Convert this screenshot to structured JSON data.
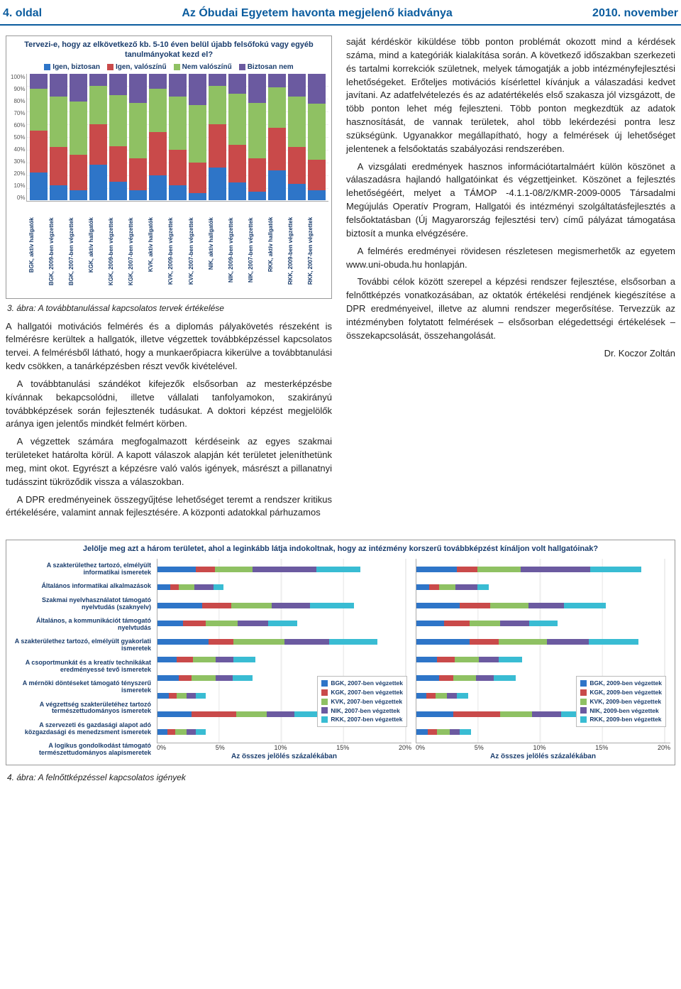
{
  "header": {
    "page_left": "4. oldal",
    "title_center": "Az Óbudai Egyetem havonta megjelenő kiadványa",
    "date_right": "2010. november"
  },
  "palette": {
    "blue": "#2e75c8",
    "red": "#c94a4a",
    "green": "#8fc163",
    "purple": "#6b5aa0",
    "teal": "#39bcd3",
    "orange": "#e09a3a"
  },
  "chart3": {
    "frame_border": "#999999",
    "title": "Tervezi-e, hogy az elkövetkező kb. 5-10 éven belül újabb felsőfokú vagy egyéb tanulmányokat kezd el?",
    "legend": [
      {
        "label": "Igen, biztosan",
        "color": "#2e75c8"
      },
      {
        "label": "Igen, valószínű",
        "color": "#c94a4a"
      },
      {
        "label": "Nem valószínű",
        "color": "#8fc163"
      },
      {
        "label": "Biztosan nem",
        "color": "#6b5aa0"
      }
    ],
    "y_ticks": [
      "100%",
      "90%",
      "80%",
      "70%",
      "60%",
      "50%",
      "40%",
      "30%",
      "20%",
      "10%",
      "0%"
    ],
    "categories": [
      "BGK, aktív hallgatók",
      "BGK, 2009-ben végzettek",
      "BGK, 2007-ben végzettek",
      "KGK, aktív hallgatók",
      "KGK, 2009-ben végzettek",
      "KGK, 2007-ben végzettek",
      "KVK, aktív hallgatók",
      "KVK, 2009-ben végzettek",
      "KVK, 2007-ben végzettek",
      "NIK, aktív hallgatók",
      "NIK, 2009-ben végzettek",
      "NIK, 2007-ben végzettek",
      "RKK, aktív hallgatók",
      "RKK, 2009-ben végzettek",
      "RKK, 2007-ben végzettek"
    ],
    "stacks": [
      [
        22,
        33,
        33,
        12
      ],
      [
        12,
        30,
        40,
        18
      ],
      [
        8,
        28,
        42,
        22
      ],
      [
        28,
        32,
        30,
        10
      ],
      [
        15,
        28,
        40,
        17
      ],
      [
        8,
        25,
        44,
        23
      ],
      [
        20,
        34,
        34,
        12
      ],
      [
        12,
        28,
        42,
        18
      ],
      [
        6,
        24,
        45,
        25
      ],
      [
        26,
        34,
        30,
        10
      ],
      [
        14,
        30,
        40,
        16
      ],
      [
        7,
        26,
        44,
        23
      ],
      [
        24,
        33,
        32,
        11
      ],
      [
        13,
        29,
        40,
        18
      ],
      [
        8,
        24,
        44,
        24
      ]
    ],
    "caption": "3. ábra: A továbbtanulással kapcsolatos tervek értékelése"
  },
  "chart4": {
    "title": "Jelölje meg azt a három területet, ahol a leginkább látja indokoltnak, hogy az intézmény korszerű továbbképzést kínáljon volt hallgatóinak?",
    "row_labels": [
      "A szakterülethez tartozó, elmélyült informatikai ismeretek",
      "Általános informatikai alkalmazások",
      "Szakmai nyelvhasználatot támogató nyelvtudás (szaknyelv)",
      "Általános, a kommunikációt támogató nyelvtudás",
      "A szakterülethez tartozó, elmélyült gyakorlati ismeretek",
      "A csoportmunkát és a kreatív technikákat eredményessé tevő ismeretek",
      "A mérnöki döntéseket támogató tényszerű ismeretek",
      "A végzettség szakterületéhez tartozó természettudományos ismeretek",
      "A szervezeti és gazdasági alapot adó közgazdasági és menedzsment ismeretek",
      "A logikus gondolkodást támogató természettudományos alapismeretek"
    ],
    "panel1": {
      "legend": [
        {
          "label": "BGK, 2007-ben végzettek",
          "color": "#2e75c8"
        },
        {
          "label": "KGK, 2007-ben végzettek",
          "color": "#c94a4a"
        },
        {
          "label": "KVK, 2007-ben végzettek",
          "color": "#8fc163"
        },
        {
          "label": "NIK, 2007-ben végzettek",
          "color": "#6b5aa0"
        },
        {
          "label": "RKK, 2007-ben végzettek",
          "color": "#39bcd3"
        }
      ],
      "x_ticks": [
        "0%",
        "5%",
        "10%",
        "15%",
        "20%"
      ],
      "x_title": "Az összes jelölés százalékában",
      "rows": [
        [
          3.0,
          1.5,
          3.0,
          5.0,
          3.5
        ],
        [
          1.0,
          0.7,
          1.2,
          1.5,
          0.8
        ],
        [
          3.5,
          2.3,
          3.2,
          3.0,
          3.5
        ],
        [
          2.0,
          1.8,
          2.5,
          2.4,
          2.3
        ],
        [
          4.0,
          2.0,
          4.0,
          3.5,
          3.8
        ],
        [
          1.5,
          1.3,
          1.8,
          1.4,
          1.7
        ],
        [
          1.7,
          1.0,
          1.9,
          1.3,
          1.6
        ],
        [
          0.9,
          0.6,
          0.8,
          0.7,
          0.8
        ],
        [
          2.7,
          3.5,
          2.4,
          2.2,
          2.6
        ],
        [
          0.8,
          0.6,
          0.9,
          0.7,
          0.8
        ]
      ]
    },
    "panel2": {
      "legend": [
        {
          "label": "BGK, 2009-ben végzettek",
          "color": "#2e75c8"
        },
        {
          "label": "KGK, 2009-ben végzettek",
          "color": "#c94a4a"
        },
        {
          "label": "KVK, 2009-ben végzettek",
          "color": "#8fc163"
        },
        {
          "label": "NIK, 2009-ben végzettek",
          "color": "#6b5aa0"
        },
        {
          "label": "RKK, 2009-ben végzettek",
          "color": "#39bcd3"
        }
      ],
      "x_ticks": [
        "0%",
        "5%",
        "10%",
        "15%",
        "20%"
      ],
      "x_title": "Az összes jelölés százalékában",
      "rows": [
        [
          3.2,
          1.6,
          3.4,
          5.5,
          4.0
        ],
        [
          1.0,
          0.8,
          1.3,
          1.7,
          0.9
        ],
        [
          3.4,
          2.4,
          3.0,
          2.8,
          3.3
        ],
        [
          2.2,
          2.0,
          2.4,
          2.3,
          2.2
        ],
        [
          4.2,
          2.3,
          3.8,
          3.3,
          3.9
        ],
        [
          1.6,
          1.4,
          1.9,
          1.6,
          1.8
        ],
        [
          1.8,
          1.1,
          1.8,
          1.4,
          1.7
        ],
        [
          0.8,
          0.7,
          0.9,
          0.8,
          0.9
        ],
        [
          2.9,
          3.7,
          2.5,
          2.3,
          2.7
        ],
        [
          0.9,
          0.7,
          1.0,
          0.8,
          0.9
        ]
      ]
    },
    "caption": "4. ábra: A felnőttképzéssel kapcsolatos igények"
  },
  "text": {
    "left": [
      "A hallgatói motivációs felmérés és a diplomás pályakövetés részeként is felmérésre kerültek a hallgatók, illetve végzettek továbbképzéssel kapcsolatos tervei. A felmérésből látható, hogy a munkaerőpiacra kikerülve a továbbtanulási kedv csökken, a tanárképzésben részt vevők kivételével.",
      "A továbbtanulási szándékot kifejezők elsősorban az mesterképzésbe kívánnak bekapcsolódni, illetve vállalati tanfolyamokon, szakirányú továbbképzések során fejlesztenék tudásukat. A doktori képzést megjelölők aránya igen jelentős mindkét felmért körben.",
      "A végzettek számára megfogalmazott kérdéseink az egyes szakmai területeket határolta körül. A kapott válaszok alapján két területet jeleníthetünk meg, mint okot. Egyrészt a képzésre való valós igények, másrészt a pillanatnyi tudásszint tükröződik vissza a válaszokban.",
      "A DPR eredményeinek összegyűjtése lehetőséget teremt a rendszer kritikus értékelésére, valamint annak fejlesztésére. A központi adatokkal párhuzamos"
    ],
    "right": [
      "saját kérdéskör kiküldése több ponton problémát okozott mind a kérdések száma, mind a kategóriák kialakítása során. A következő időszakban szerkezeti és tartalmi korrekciók születnek, melyek támogatják a jobb intézményfejlesztési lehetőségeket. Erőteljes motivációs kísérlettel kívánjuk a válaszadási kedvet javítani. Az adatfelvételezés és az adatértékelés első szakasza jól vizsgázott, de több ponton lehet még fejleszteni. Több ponton megkezdtük az adatok hasznosítását, de vannak területek, ahol több lekérdezési pontra lesz szükségünk. Ugyanakkor megállapítható, hogy a felmérések új lehetőséget jelentenek a felsőoktatás szabályozási rendszerében.",
      "A vizsgálati eredmények hasznos információtartalmáért külön köszönet a válaszadásra hajlandó hallgatóinkat és végzettjeinket. Köszönet a fejlesztés lehetőségéért, melyet a TÁMOP -4.1.1-08/2/KMR-2009-0005 Társadalmi Megújulás Operatív Program, Hallgatói és intézményi szolgáltatásfejlesztés a felsőoktatásban (Új Magyarország fejlesztési terv) című pályázat támogatása biztosít a munka elvégzésére.",
      "A felmérés eredményei rövidesen részletesen megismerhetők az egyetem www.uni-obuda.hu honlapján.",
      "További célok között szerepel a képzési rendszer fejlesztése, elsősorban a felnőttképzés vonatkozásában, az oktatók értékelési rendjének kiegészítése a DPR eredményeivel, illetve az alumni rendszer megerősítése. Tervezzük az intézményben folytatott felmérések – elsősorban elégedettségi értékelések – összekapcsolását, összehangolását."
    ],
    "author": "Dr. Koczor Zoltán"
  }
}
